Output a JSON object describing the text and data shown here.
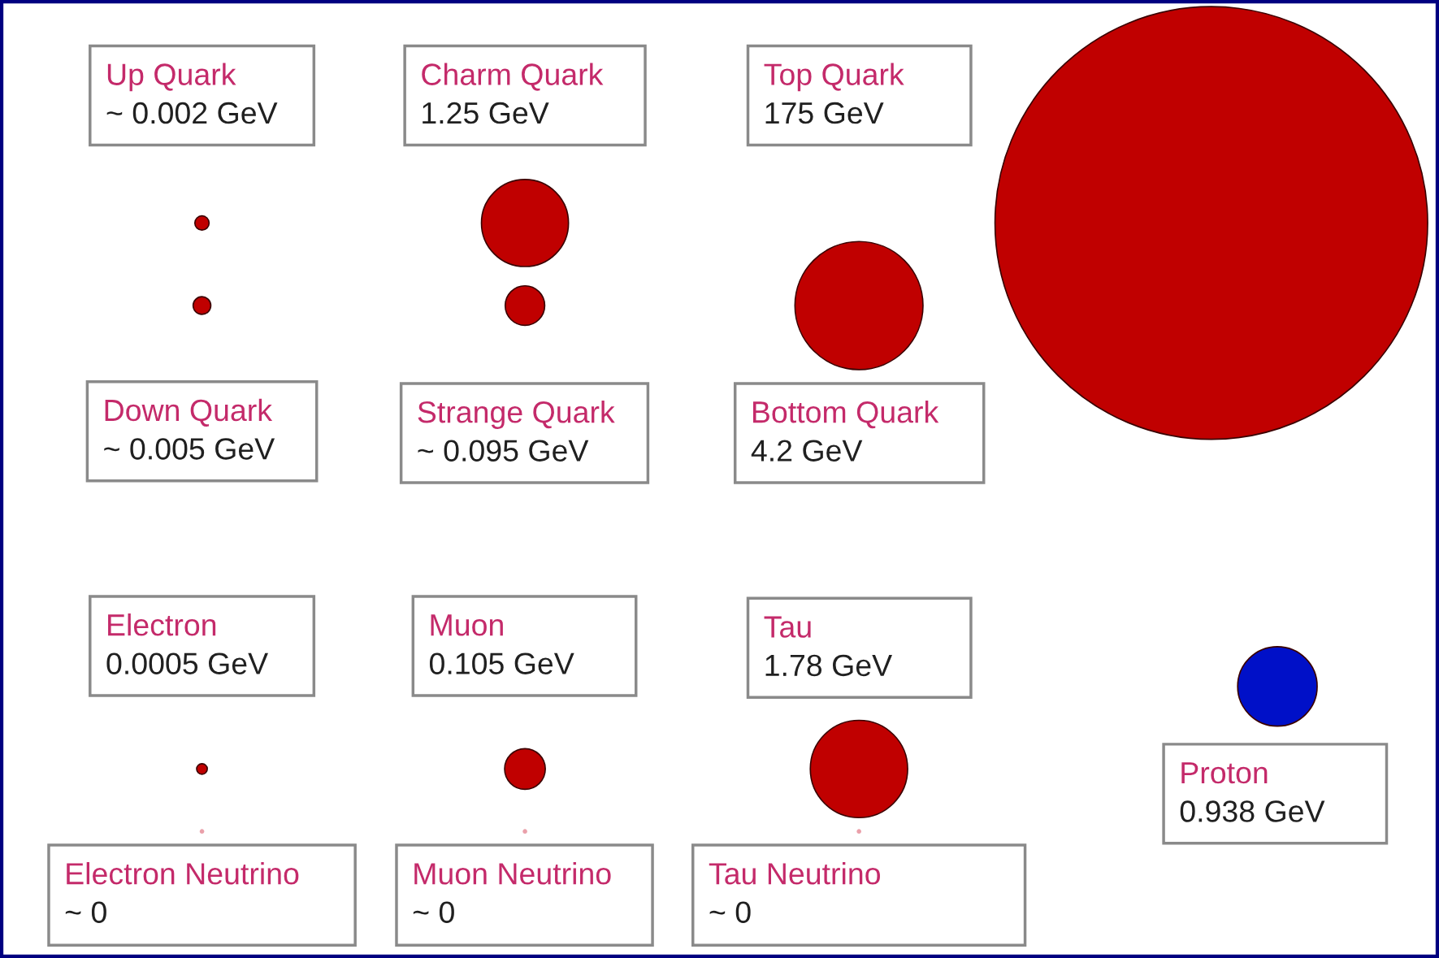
{
  "chart_data": {
    "type": "other",
    "categories": [
      "Up Quark",
      "Charm Quark",
      "Top Quark",
      "Down Quark",
      "Strange Quark",
      "Bottom Quark",
      "Electron",
      "Muon",
      "Tau",
      "Proton",
      "Electron Neutrino",
      "Muon Neutrino",
      "Tau Neutrino"
    ],
    "values": [
      0.002,
      1.25,
      175,
      0.005,
      0.095,
      4.2,
      0.0005,
      0.105,
      1.78,
      0.938,
      0,
      0,
      0
    ],
    "value_labels": [
      "~ 0.002 GeV",
      "1.25 GeV",
      "175 GeV",
      "~ 0.005 GeV",
      "~ 0.095 GeV",
      "4.2 GeV",
      "0.0005 GeV",
      "0.105 GeV",
      "1.78 GeV",
      "0.938 GeV",
      "~ 0",
      "~ 0",
      "~ 0"
    ],
    "colors": [
      "#c00000",
      "#c00000",
      "#c00000",
      "#c00000",
      "#c00000",
      "#c00000",
      "#c00000",
      "#c00000",
      "#c00000",
      "#0010c8",
      "#eaa0aa",
      "#eaa0aa",
      "#eaa0aa"
    ]
  }
}
